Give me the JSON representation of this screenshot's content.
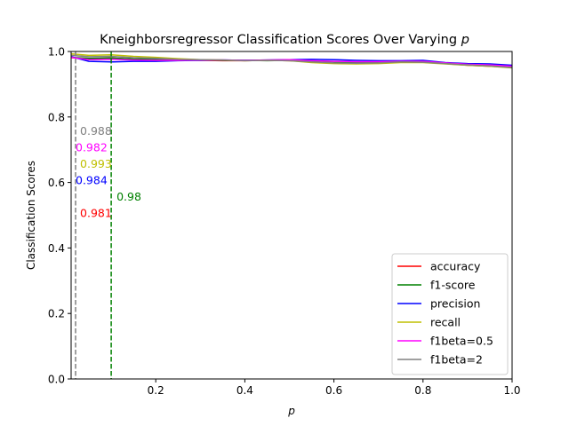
{
  "chart_data": {
    "type": "line",
    "title": "Kneighborsregressor Classification Scores Over Varying",
    "title_var": "p",
    "xlabel": "p",
    "ylabel": "Classification Scores",
    "xlim": [
      0.01,
      1.0
    ],
    "ylim": [
      0.0,
      1.0
    ],
    "xticks": [
      0.2,
      0.4,
      0.6,
      0.8,
      1.0
    ],
    "xtick_labels": [
      "0.2",
      "0.4",
      "0.6",
      "0.8",
      "1.0"
    ],
    "yticks": [
      0.0,
      0.2,
      0.4,
      0.6,
      0.8,
      1.0
    ],
    "ytick_labels": [
      "0.0",
      "0.2",
      "0.4",
      "0.6",
      "0.8",
      "1.0"
    ],
    "grid": false,
    "legend_position": "lower right",
    "x": [
      0.01,
      0.05,
      0.1,
      0.15,
      0.2,
      0.25,
      0.3,
      0.35,
      0.4,
      0.45,
      0.5,
      0.55,
      0.6,
      0.65,
      0.7,
      0.75,
      0.8,
      0.85,
      0.9,
      0.95,
      1.0
    ],
    "series": [
      {
        "name": "accuracy",
        "color": "#ff0000",
        "values": [
          0.981,
          0.978,
          0.98,
          0.976,
          0.975,
          0.974,
          0.973,
          0.972,
          0.972,
          0.973,
          0.972,
          0.971,
          0.968,
          0.967,
          0.966,
          0.968,
          0.969,
          0.963,
          0.958,
          0.955,
          0.952
        ]
      },
      {
        "name": "f1-score",
        "color": "#008000",
        "values": [
          0.982,
          0.979,
          0.98,
          0.977,
          0.976,
          0.975,
          0.974,
          0.973,
          0.973,
          0.972,
          0.973,
          0.97,
          0.967,
          0.966,
          0.967,
          0.969,
          0.968,
          0.964,
          0.96,
          0.957,
          0.953
        ]
      },
      {
        "name": "precision",
        "color": "#0000ff",
        "values": [
          0.984,
          0.97,
          0.968,
          0.97,
          0.97,
          0.972,
          0.973,
          0.974,
          0.973,
          0.974,
          0.975,
          0.976,
          0.975,
          0.973,
          0.972,
          0.972,
          0.973,
          0.966,
          0.963,
          0.962,
          0.958
        ]
      },
      {
        "name": "recall",
        "color": "#bfbf00",
        "values": [
          0.993,
          0.988,
          0.99,
          0.985,
          0.982,
          0.978,
          0.975,
          0.974,
          0.972,
          0.973,
          0.972,
          0.966,
          0.963,
          0.962,
          0.963,
          0.966,
          0.966,
          0.962,
          0.958,
          0.955,
          0.95
        ]
      },
      {
        "name": "f1beta=0.5",
        "color": "#ff00ff",
        "values": [
          0.982,
          0.975,
          0.976,
          0.974,
          0.973,
          0.973,
          0.974,
          0.974,
          0.973,
          0.974,
          0.975,
          0.972,
          0.97,
          0.969,
          0.969,
          0.97,
          0.97,
          0.965,
          0.961,
          0.959,
          0.955
        ]
      },
      {
        "name": "f1beta=2",
        "color": "#808080",
        "values": [
          0.988,
          0.984,
          0.985,
          0.981,
          0.979,
          0.976,
          0.975,
          0.974,
          0.972,
          0.973,
          0.972,
          0.968,
          0.965,
          0.964,
          0.965,
          0.968,
          0.967,
          0.963,
          0.959,
          0.956,
          0.951
        ]
      }
    ],
    "vlines": [
      {
        "x": 0.1,
        "color": "#008000"
      },
      {
        "x": 0.02,
        "color": "#808080"
      }
    ],
    "annotations": [
      {
        "text": "0.988",
        "x": 0.03,
        "y": 0.757,
        "color": "#808080"
      },
      {
        "text": "0.982",
        "x": 0.02,
        "y": 0.707,
        "color": "#ff00ff"
      },
      {
        "text": "0.993",
        "x": 0.03,
        "y": 0.657,
        "color": "#bfbf00"
      },
      {
        "text": "0.984",
        "x": 0.02,
        "y": 0.607,
        "color": "#0000ff"
      },
      {
        "text": "0.98",
        "x": 0.112,
        "y": 0.557,
        "color": "#008000"
      },
      {
        "text": "0.981",
        "x": 0.03,
        "y": 0.507,
        "color": "#ff0000"
      }
    ]
  }
}
